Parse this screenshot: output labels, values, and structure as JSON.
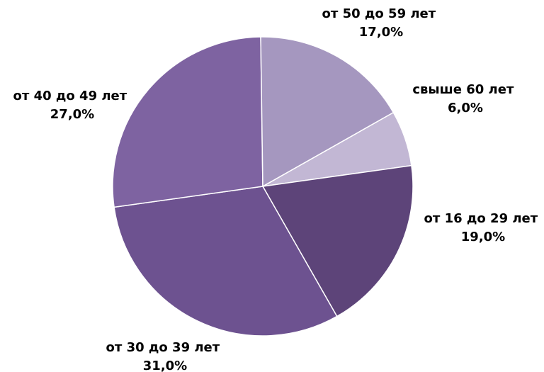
{
  "chart_data": {
    "type": "pie",
    "title": "",
    "start_direction": "clockwise",
    "slices": [
      {
        "label": "свыше 60 лет",
        "value": 6.0,
        "value_text": "6,0%",
        "color": "#c2b7d4"
      },
      {
        "label": "от 16 до 29 лет",
        "value": 19.0,
        "value_text": "19,0%",
        "color": "#5d4479"
      },
      {
        "label": "от 30 до 39 лет",
        "value": 31.0,
        "value_text": "31,0%",
        "color": "#6d5290"
      },
      {
        "label": "от 40 до 49 лет",
        "value": 27.0,
        "value_text": "27,0%",
        "color": "#7e63a1"
      },
      {
        "label": "от 50 до 59 лет",
        "value": 17.0,
        "value_text": "17,0%",
        "color": "#a597bf"
      }
    ]
  }
}
